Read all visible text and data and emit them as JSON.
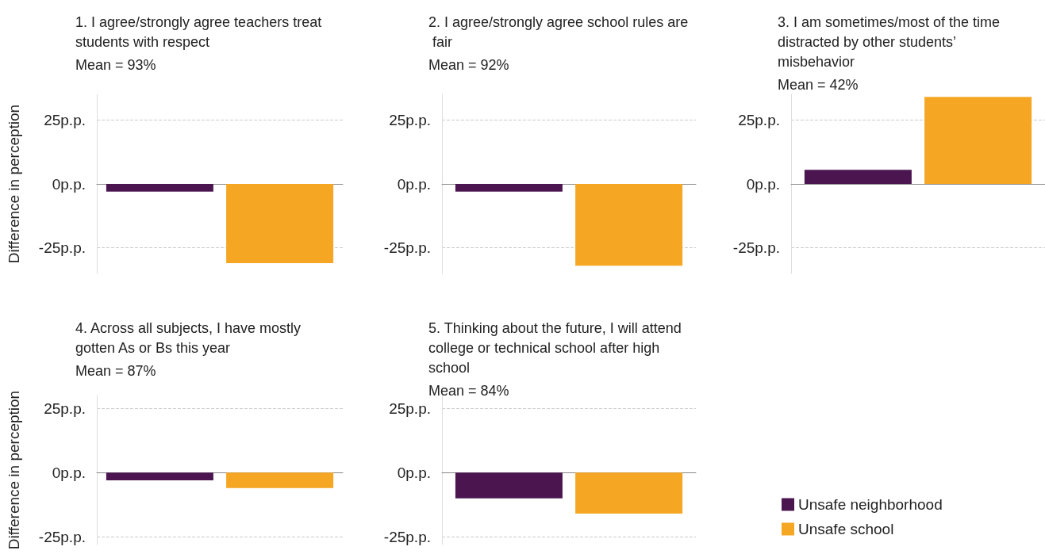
{
  "chart_data": [
    {
      "type": "bar",
      "title": "1. I agree/strongly agree teachers treat students with respect",
      "subtitle": "Mean = 93%",
      "ylabel": "Difference in perception",
      "categories": [
        null
      ],
      "series": [
        {
          "color": "#4b1650",
          "values": [
            -3
          ]
        },
        {
          "color": "#f5a623",
          "values": [
            -31
          ]
        }
      ],
      "ylim": [
        -35,
        35
      ],
      "yticks": [
        {
          "value": -25,
          "label": "-25p.p."
        },
        {
          "value": 0,
          "label": "0p.p."
        },
        {
          "value": 25,
          "label": "25p.p."
        }
      ],
      "grid": "y",
      "tick_labels": "y",
      "legend": false
    },
    {
      "type": "bar",
      "title": "2. I agree/strongly agree school rules are fair",
      "subtitle": "Mean = 92%",
      "categories": [
        null
      ],
      "series": [
        {
          "color": "#4b1650",
          "values": [
            -3
          ]
        },
        {
          "color": "#f5a623",
          "values": [
            -32
          ]
        }
      ],
      "ylim": [
        -35,
        35
      ],
      "yticks": [
        {
          "value": -25,
          "label": "-25p.p."
        },
        {
          "value": 0,
          "label": "0p.p."
        },
        {
          "value": 25,
          "label": "25p.p."
        }
      ],
      "grid": "y",
      "tick_labels": "y",
      "legend": false
    },
    {
      "type": "bar",
      "title": "3. I am sometimes/most of the time distracted by other students’ misbehavior",
      "subtitle": "Mean = 42%",
      "categories": [
        null
      ],
      "series": [
        {
          "color": "#4b1650",
          "values": [
            5.5
          ]
        },
        {
          "color": "#f5a623",
          "values": [
            34
          ]
        }
      ],
      "ylim": [
        -35,
        35
      ],
      "yticks": [
        {
          "value": -25,
          "label": "-25p.p."
        },
        {
          "value": 0,
          "label": "0p.p."
        },
        {
          "value": 25,
          "label": "25p.p."
        }
      ],
      "grid": "y",
      "tick_labels": "y",
      "legend": false
    },
    {
      "type": "bar",
      "title": "4. Across all subjects, I have mostly gotten As or Bs this year",
      "subtitle": "Mean = 87%",
      "ylabel": "Difference in perception",
      "categories": [
        null
      ],
      "series": [
        {
          "color": "#4b1650",
          "values": [
            -3
          ]
        },
        {
          "color": "#f5a623",
          "values": [
            -6
          ]
        }
      ],
      "ylim": [
        -28,
        30
      ],
      "yticks": [
        {
          "value": -25,
          "label": "-25p.p."
        },
        {
          "value": 0,
          "label": "0p.p."
        },
        {
          "value": 25,
          "label": "25p.p."
        }
      ],
      "grid": "y",
      "tick_labels": "y",
      "legend": false
    },
    {
      "type": "bar",
      "title": "5. Thinking about the future, I will attend college or technical school after high school",
      "subtitle": "Mean = 84%",
      "categories": [
        null
      ],
      "series": [
        {
          "name": "Unsafe neighborhood",
          "color": "#4b1650",
          "values": [
            -10
          ]
        },
        {
          "name": "Unsafe school",
          "color": "#f5a623",
          "values": [
            -16
          ]
        }
      ],
      "ylim": [
        -28,
        30
      ],
      "yticks": [
        {
          "value": -25,
          "label": "-25p.p."
        },
        {
          "value": 0,
          "label": "0p.p."
        },
        {
          "value": 25,
          "label": "25p.p."
        }
      ],
      "grid": "y",
      "tick_labels": "y",
      "legend": "right"
    }
  ]
}
